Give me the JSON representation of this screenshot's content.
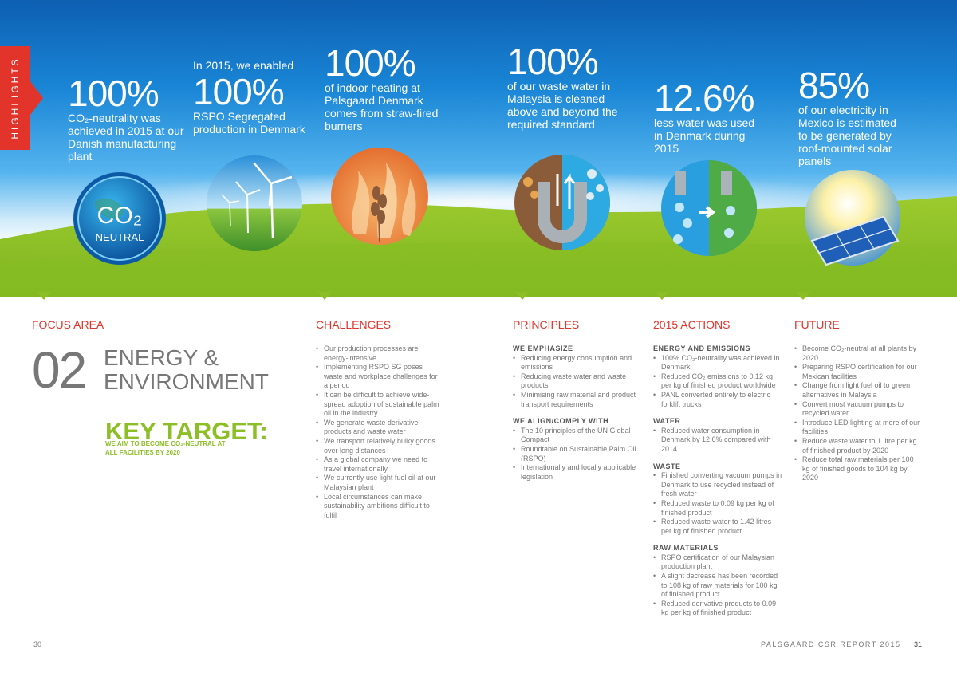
{
  "tab": {
    "label": "HIGHLIGHTS"
  },
  "highlights": [
    {
      "big": "100%",
      "text": "CO₂-neutrality was achieved in 2015 at our Danish manufacturing plant"
    },
    {
      "pre": "In 2015, we enabled",
      "big": "100%",
      "text": "RSPO Segregated production in Denmark"
    },
    {
      "big": "100%",
      "text": "of indoor heating at Palsgaard Denmark comes from straw-fired burners"
    },
    {
      "big": "100%",
      "text": "of our waste water in Malaysia is cleaned above and beyond the required standard"
    },
    {
      "big": "12.6%",
      "text": "less water was used in Denmark during 2015"
    },
    {
      "big": "85%",
      "text": "of our electricity in Mexico is estimated to be generated by roof-mounted solar panels"
    }
  ],
  "co2_badge": {
    "main": "CO₂",
    "sub": "NEUTRAL"
  },
  "headers": {
    "focus": "FOCUS AREA",
    "challenges": "CHALLENGES",
    "principles": "PRINCIPLES",
    "actions": "2015 ACTIONS",
    "future": "FUTURE"
  },
  "focus": {
    "number": "02",
    "title_line1": "ENERGY &",
    "title_line2": "ENVIRONMENT",
    "key_target": "KEY TARGET:",
    "key_target_line1": "WE AIM TO BECOME CO₂-NEUTRAL AT",
    "key_target_line2": "ALL FACILITIES BY 2020"
  },
  "challenges": [
    "Our production processes are energy-intensive",
    "Implementing RSPO SG poses waste and workplace challenges for a period",
    "It can be difficult to achieve wide-spread adoption of sustainable palm oil in the industry",
    "We generate waste derivative products and waste water",
    "We transport relatively bulky goods over long distances",
    "As a global company we need to travel internationally",
    "We currently use light fuel oil at our Malaysian plant",
    "Local circumstances can make sustainability ambitions difficult to fulfil"
  ],
  "principles": {
    "g1_title": "WE EMPHASIZE",
    "g1": [
      "Reducing energy consumption and emissions",
      "Reducing waste water and waste products",
      "Minimising raw material and product transport requirements"
    ],
    "g2_title": "WE ALIGN/COMPLY WITH",
    "g2": [
      "The 10 principles of the UN Global Compact",
      "Roundtable on Sustainable Palm Oil (RSPO)",
      "Internationally and locally applicable legislation"
    ]
  },
  "actions": {
    "s1_title": "ENERGY AND EMISSIONS",
    "s1": [
      "100% CO₂-neutrality was achieved in Denmark",
      "Reduced CO₂ emissions to 0.12 kg per kg of finished product worldwide",
      "PANL converted entirely to electric forklift trucks"
    ],
    "s2_title": "WATER",
    "s2": [
      "Reduced water consumption in Denmark by 12.6% compared with 2014"
    ],
    "s3_title": "WASTE",
    "s3": [
      "Finished converting vacuum pumps in Denmark to use recycled instead of fresh water",
      "Reduced waste to 0.09 kg per kg of finished product",
      "Reduced waste water to 1.42 litres per kg of finished product"
    ],
    "s4_title": "RAW MATERIALS",
    "s4": [
      "RSPO certification of our Malaysian production plant",
      "A slight decrease has been recorded to 108 kg of raw materials for 100 kg of finished product",
      "Reduced derivative products to 0.09 kg per kg of finished product"
    ]
  },
  "future": [
    "Become CO₂-neutral at all plants by 2020",
    "Preparing RSPO certification for our Mexican facilities",
    "Change from light fuel oil to green alternatives in Malaysia",
    "Convert most vacuum pumps to recycled water",
    "Introduce LED lighting at more of our facilities",
    "Reduce waste water to 1 litre per kg of finished product by 2020",
    "Reduce total raw materials per 100 kg of finished goods to 104 kg by 2020"
  ],
  "footer": {
    "left_page": "30",
    "report": "PALSGAARD CSR REPORT 2015",
    "right_page": "31"
  },
  "colors": {
    "accent_red": "#e2342a",
    "green": "#8cbf26",
    "sky": "#1a86d6"
  }
}
